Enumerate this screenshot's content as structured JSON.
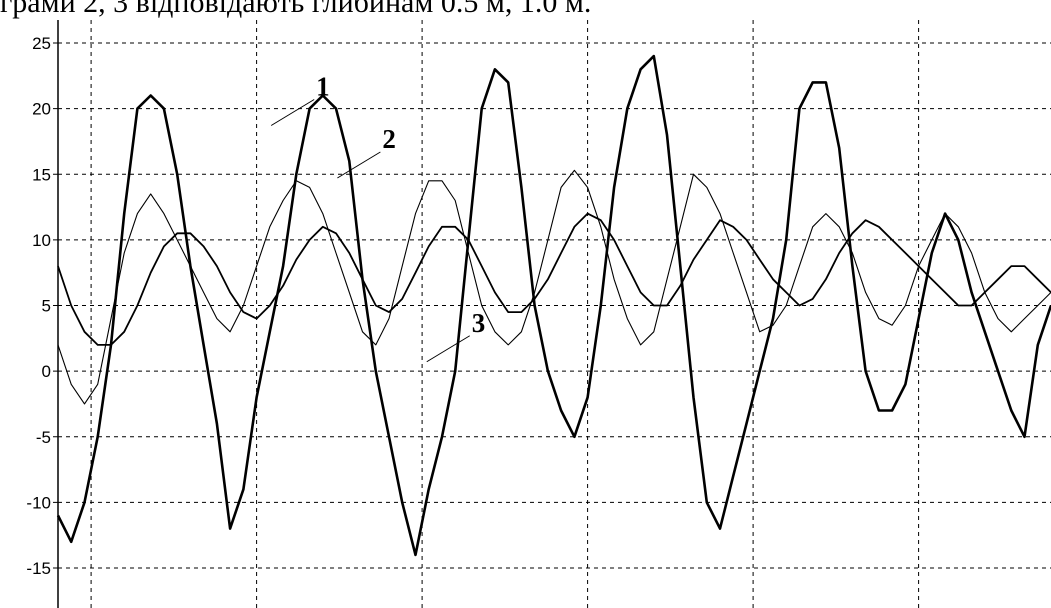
{
  "caption_fragment": "грами 2, 3 відповідають глибинам 0.5 м, 1.0 м.",
  "chart_data": {
    "type": "line",
    "title": "",
    "xlabel": "",
    "ylabel": "",
    "ylim": [
      -18,
      27
    ],
    "xlim": [
      0,
      30
    ],
    "yticks": [
      25,
      20,
      15,
      10,
      5,
      0,
      -5,
      -10,
      -15
    ],
    "ytick_labels": [
      "25",
      "20",
      "15",
      "10",
      "5",
      "0",
      "-5",
      "-10",
      "-15"
    ],
    "xgrid": [
      1,
      6,
      11,
      16,
      21,
      26
    ],
    "grid": true,
    "grid_style": "dashed",
    "curve_labels": [
      {
        "text": "1",
        "series": 0,
        "x": 7.8,
        "y": 21.0
      },
      {
        "text": "2",
        "series": 1,
        "x": 9.8,
        "y": 17.0
      },
      {
        "text": "3",
        "series": 2,
        "x": 12.5,
        "y": 3.0
      }
    ],
    "series": [
      {
        "style": "thick-noisy",
        "x": [
          0.0,
          0.4,
          0.8,
          1.2,
          1.6,
          2.0,
          2.4,
          2.8,
          3.2,
          3.6,
          4.0,
          4.4,
          4.8,
          5.2,
          5.6,
          6.0,
          6.4,
          6.8,
          7.2,
          7.6,
          8.0,
          8.4,
          8.8,
          9.2,
          9.6,
          10.0,
          10.4,
          10.8,
          11.2,
          11.6,
          12.0,
          12.4,
          12.8,
          13.2,
          13.6,
          14.0,
          14.4,
          14.8,
          15.2,
          15.6,
          16.0,
          16.4,
          16.8,
          17.2,
          17.6,
          18.0,
          18.4,
          18.8,
          19.2,
          19.6,
          20.0,
          20.4,
          20.8,
          21.2,
          21.6,
          22.0,
          22.4,
          22.8,
          23.2,
          23.6,
          24.0,
          24.4,
          24.8,
          25.2,
          25.6,
          26.0,
          26.4,
          26.8,
          27.2,
          27.6,
          28.0,
          28.4,
          28.8,
          29.2,
          29.6,
          30.0
        ],
        "y": [
          -11,
          -13,
          -10,
          -5,
          2,
          12,
          20,
          21,
          20,
          15,
          8,
          2,
          -4,
          -12,
          -9,
          -2,
          3,
          8,
          15,
          20,
          21,
          20,
          16,
          7,
          0,
          -5,
          -10,
          -14,
          -9,
          -5,
          0,
          10,
          20,
          23,
          22,
          14,
          5,
          0,
          -3,
          -5,
          -2,
          5,
          14,
          20,
          23,
          24,
          18,
          8,
          -2,
          -10,
          -12,
          -8,
          -4,
          0,
          4,
          10,
          20,
          22,
          22,
          17,
          8,
          0,
          -3,
          -3,
          -1,
          4,
          9,
          12,
          10,
          6,
          3,
          0,
          -3,
          -5,
          2,
          5
        ]
      },
      {
        "style": "thin",
        "x": [
          0.0,
          0.4,
          0.8,
          1.2,
          1.6,
          2.0,
          2.4,
          2.8,
          3.2,
          3.6,
          4.0,
          4.4,
          4.8,
          5.2,
          5.6,
          6.0,
          6.4,
          6.8,
          7.2,
          7.6,
          8.0,
          8.4,
          8.8,
          9.2,
          9.6,
          10.0,
          10.4,
          10.8,
          11.2,
          11.6,
          12.0,
          12.4,
          12.8,
          13.2,
          13.6,
          14.0,
          14.4,
          14.8,
          15.2,
          15.6,
          16.0,
          16.4,
          16.8,
          17.2,
          17.6,
          18.0,
          18.4,
          18.8,
          19.2,
          19.6,
          20.0,
          20.4,
          20.8,
          21.2,
          21.6,
          22.0,
          22.4,
          22.8,
          23.2,
          23.6,
          24.0,
          24.4,
          24.8,
          25.2,
          25.6,
          26.0,
          26.4,
          26.8,
          27.2,
          27.6,
          28.0,
          28.4,
          28.8,
          29.2,
          29.6,
          30.0
        ],
        "y": [
          2,
          -1,
          -2.5,
          -1,
          4,
          9,
          12,
          13.5,
          12,
          10,
          8,
          6,
          4,
          3,
          5,
          8,
          11,
          13,
          14.5,
          14,
          12,
          9,
          6,
          3,
          2,
          4,
          8,
          12,
          14.5,
          14.5,
          13,
          9,
          5,
          3,
          2,
          3,
          6,
          10,
          14,
          15.3,
          14,
          11,
          7,
          4,
          2,
          3,
          7,
          11,
          15,
          14,
          12,
          9,
          6,
          3,
          3.5,
          5,
          8,
          11,
          12,
          11,
          9,
          6,
          4,
          3.5,
          5,
          8,
          10,
          12,
          11,
          9,
          6,
          4,
          3,
          4,
          5,
          6
        ]
      },
      {
        "style": "medium",
        "x": [
          0.0,
          0.4,
          0.8,
          1.2,
          1.6,
          2.0,
          2.4,
          2.8,
          3.2,
          3.6,
          4.0,
          4.4,
          4.8,
          5.2,
          5.6,
          6.0,
          6.4,
          6.8,
          7.2,
          7.6,
          8.0,
          8.4,
          8.8,
          9.2,
          9.6,
          10.0,
          10.4,
          10.8,
          11.2,
          11.6,
          12.0,
          12.4,
          12.8,
          13.2,
          13.6,
          14.0,
          14.4,
          14.8,
          15.2,
          15.6,
          16.0,
          16.4,
          16.8,
          17.2,
          17.6,
          18.0,
          18.4,
          18.8,
          19.2,
          19.6,
          20.0,
          20.4,
          20.8,
          21.2,
          21.6,
          22.0,
          22.4,
          22.8,
          23.2,
          23.6,
          24.0,
          24.4,
          24.8,
          25.2,
          25.6,
          26.0,
          26.4,
          26.8,
          27.2,
          27.6,
          28.0,
          28.4,
          28.8,
          29.2,
          29.6,
          30.0
        ],
        "y": [
          8,
          5,
          3,
          2,
          2,
          3,
          5,
          7.5,
          9.5,
          10.5,
          10.5,
          9.5,
          8,
          6,
          4.5,
          4,
          5,
          6.5,
          8.5,
          10,
          11,
          10.5,
          9,
          7,
          5,
          4.5,
          5.5,
          7.5,
          9.5,
          11,
          11,
          10,
          8,
          6,
          4.5,
          4.5,
          5.5,
          7,
          9,
          11,
          12,
          11.5,
          10,
          8,
          6,
          5,
          5,
          6.5,
          8.5,
          10,
          11.5,
          11,
          10,
          8.5,
          7,
          6,
          5,
          5.5,
          7,
          9,
          10.5,
          11.5,
          11,
          10,
          9,
          8,
          7,
          6,
          5,
          5,
          6,
          7,
          8,
          8,
          7,
          6
        ]
      }
    ]
  }
}
